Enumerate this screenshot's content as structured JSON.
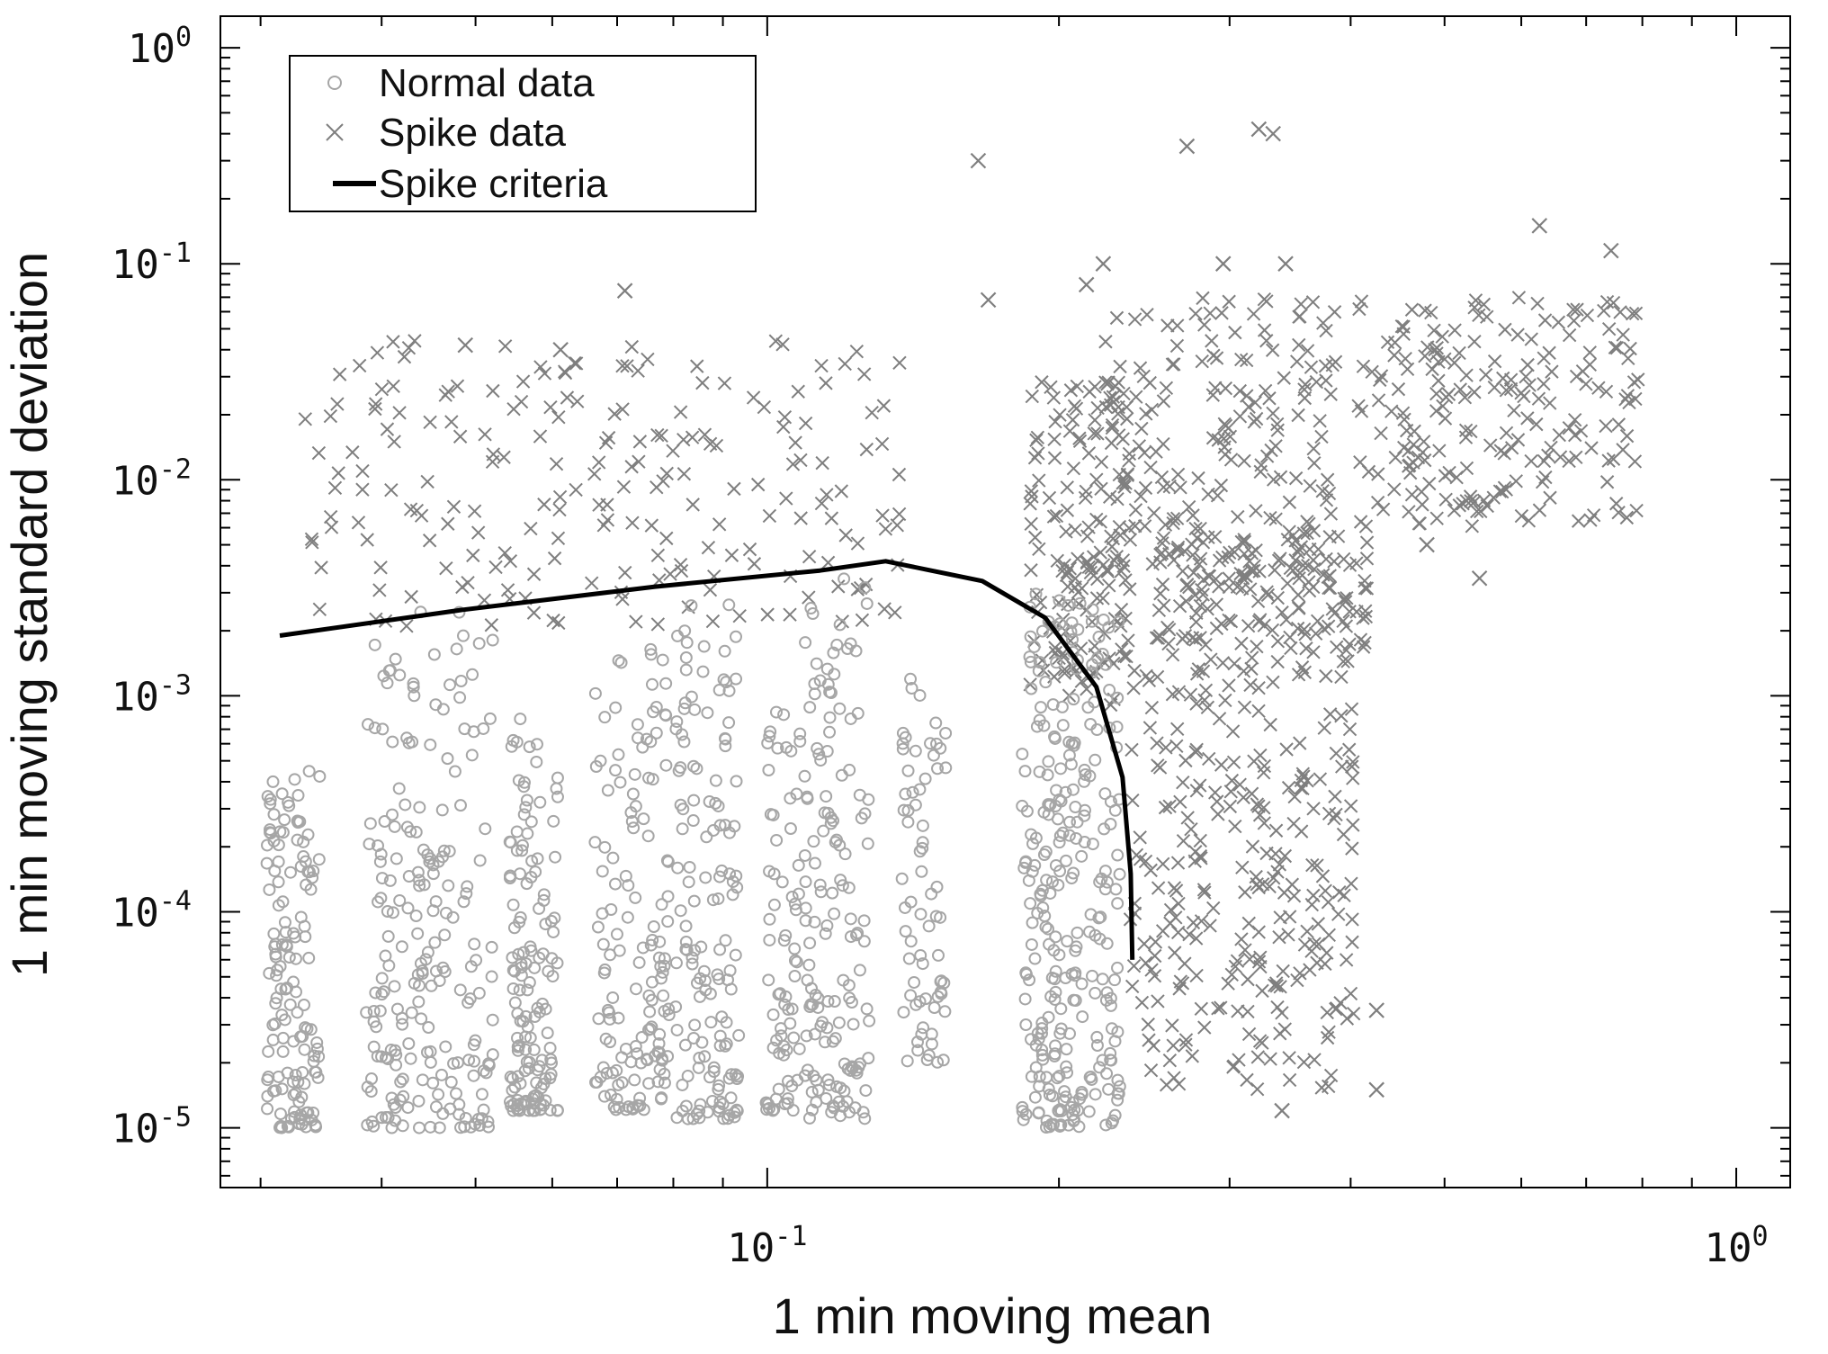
{
  "chart_data": {
    "type": "scatter",
    "xlabel": "1 min moving mean",
    "ylabel": "1 min moving standard deviation",
    "x_scale": "log",
    "y_scale": "log",
    "xlim": [
      0.02727,
      1.1368
    ],
    "ylim": [
      5.29e-06,
      1.4
    ],
    "grid": false,
    "legend_position": "top-left",
    "x_ticks": [
      {
        "value": 0.1,
        "base": "10",
        "exp": "-1"
      },
      {
        "value": 1,
        "base": "10",
        "exp": "0"
      }
    ],
    "y_ticks": [
      {
        "value": 1e-05,
        "base": "10",
        "exp": "-5"
      },
      {
        "value": 0.0001,
        "base": "10",
        "exp": "-4"
      },
      {
        "value": 0.001,
        "base": "10",
        "exp": "-3"
      },
      {
        "value": 0.01,
        "base": "10",
        "exp": "-2"
      },
      {
        "value": 0.1,
        "base": "10",
        "exp": "-1"
      },
      {
        "value": 1,
        "base": "10",
        "exp": "0"
      }
    ],
    "legend": [
      {
        "label": "Normal data",
        "marker": "circle"
      },
      {
        "label": "Spike data",
        "marker": "x"
      },
      {
        "label": "Spike criteria",
        "marker": "line"
      }
    ],
    "colors": {
      "normal": "#a6a6a6",
      "spike": "#7f7f7f",
      "criteria": "#000000",
      "frame": "#000000"
    },
    "series": [
      {
        "name": "Spike criteria",
        "kind": "line",
        "points": [
          [
            0.0314,
            0.0019
          ],
          [
            0.0485,
            0.0025
          ],
          [
            0.0766,
            0.0032
          ],
          [
            0.1133,
            0.0038
          ],
          [
            0.1325,
            0.0042
          ],
          [
            0.1667,
            0.0034
          ],
          [
            0.1935,
            0.0023
          ],
          [
            0.2186,
            0.0011
          ],
          [
            0.2326,
            0.00042
          ],
          [
            0.2372,
            0.00015
          ],
          [
            0.2381,
            6e-05
          ]
        ]
      },
      {
        "name": "Normal data",
        "kind": "scatter-clusters",
        "clusters": [
          {
            "x": [
              0.0304,
              0.0346
            ],
            "y": [
              1e-05,
              0.00045
            ],
            "weight": 2
          },
          {
            "x": [
              0.0385,
              0.0521
            ],
            "y": [
              1e-05,
              0.0025
            ],
            "weight": 3
          },
          {
            "x": [
              0.0542,
              0.0566
            ],
            "y": [
              1.2e-05,
              0.0015
            ],
            "weight": 1
          },
          {
            "x": [
              0.0566,
              0.0608
            ],
            "y": [
              1.2e-05,
              0.0006
            ],
            "weight": 1
          },
          {
            "x": [
              0.0664,
              0.0792
            ],
            "y": [
              1.2e-05,
              0.0018
            ],
            "weight": 2
          },
          {
            "x": [
              0.0803,
              0.0938
            ],
            "y": [
              1.1e-05,
              0.0028
            ],
            "weight": 2
          },
          {
            "x": [
              0.0997,
              0.1082
            ],
            "y": [
              1.2e-05,
              0.0009
            ],
            "weight": 1
          },
          {
            "x": [
              0.1092,
              0.1274
            ],
            "y": [
              1.1e-05,
              0.0035
            ],
            "weight": 2
          },
          {
            "x": [
              0.1377,
              0.1529
            ],
            "y": [
              2e-05,
              0.0012
            ],
            "weight": 1
          },
          {
            "x": [
              0.1832,
              0.2312
            ],
            "y": [
              1e-05,
              0.003
            ],
            "weight": 4
          }
        ]
      },
      {
        "name": "Spike data",
        "kind": "scatter-clusters",
        "clusters": [
          {
            "x": [
              0.0333,
              0.1371
            ],
            "y": [
              0.0021,
              0.045
            ],
            "weight": 3
          },
          {
            "x": [
              0.1867,
              0.2364
            ],
            "y": [
              0.0009,
              0.03
            ],
            "weight": 2
          },
          {
            "x": [
              0.2364,
              0.4035
            ],
            "y": [
              1.5e-05,
              0.0015
            ],
            "weight": 4
          },
          {
            "x": [
              0.2135,
              0.3902
            ],
            "y": [
              0.003,
              0.07
            ],
            "weight": 3
          },
          {
            "x": [
              0.2512,
              0.4162
            ],
            "y": [
              0.0015,
              0.006
            ],
            "weight": 2
          },
          {
            "x": [
              0.4065,
              0.7919
            ],
            "y": [
              0.006,
              0.07
            ],
            "weight": 3
          }
        ],
        "outliers": [
          [
            0.1651,
            0.3
          ],
          [
            0.1691,
            0.068
          ],
          [
            0.0713,
            0.075
          ],
          [
            0.2711,
            0.35
          ],
          [
            0.3216,
            0.42
          ],
          [
            0.3327,
            0.4
          ],
          [
            0.6265,
            0.15
          ],
          [
            0.7426,
            0.115
          ],
          [
            0.2222,
            0.1
          ],
          [
            0.2135,
            0.08
          ],
          [
            0.2955,
            0.1
          ],
          [
            0.3427,
            0.1
          ],
          [
            0.4794,
            0.005
          ],
          [
            0.5433,
            0.0035
          ],
          [
            0.4254,
            1.5e-05
          ],
          [
            0.4254,
            3.5e-05
          ],
          [
            0.3398,
            1.2e-05
          ],
          [
            0.0488,
            0.042
          ],
          [
            0.0612,
            0.04
          ]
        ]
      }
    ]
  }
}
